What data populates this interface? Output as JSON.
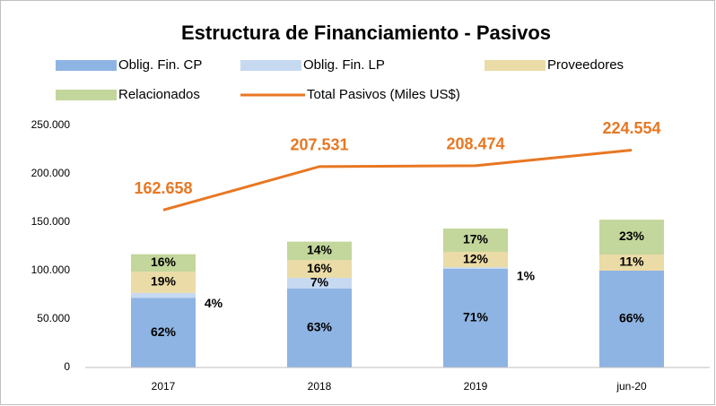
{
  "chart_data": {
    "type": "stacked_bar_line",
    "title": "Estructura de Financiamiento - Pasivos",
    "categories": [
      "2017",
      "2018",
      "2019",
      "jun-20"
    ],
    "series": [
      {
        "name": "Oblig. Fin. CP",
        "color": "#8eb4e3",
        "values": [
          72000,
          81500,
          102000,
          100000
        ],
        "labels": [
          "62%",
          "63%",
          "71%",
          "66%"
        ]
      },
      {
        "name": "Oblig. Fin. LP",
        "color": "#c6d9f1",
        "values": [
          5000,
          11000,
          1500,
          0
        ],
        "labels": [
          "4%",
          "7%",
          "1%",
          null
        ]
      },
      {
        "name": "Proveedores",
        "color": "#ebdba6",
        "values": [
          22000,
          18500,
          16000,
          16700
        ],
        "labels": [
          "19%",
          "16%",
          "12%",
          "11%"
        ]
      },
      {
        "name": "Relacionados",
        "color": "#c3d69b",
        "values": [
          18000,
          19000,
          24000,
          36000
        ],
        "labels": [
          "16%",
          "14%",
          "17%",
          "23%"
        ]
      }
    ],
    "line": {
      "name": "Total Pasivos (Miles US$)",
      "color": "#e87722",
      "values": [
        162658,
        207531,
        208474,
        224554
      ],
      "value_labels": [
        "162.658",
        "207.531",
        "208.474",
        "224.554"
      ]
    },
    "ylim": [
      0,
      250000
    ],
    "yticks": [
      0,
      {
        "value": 50000,
        "label": "50.000"
      },
      {
        "value": 100000,
        "label": "100.000"
      },
      {
        "value": 150000,
        "label": "150.000"
      },
      {
        "value": 200000,
        "label": "200.000"
      },
      {
        "value": 250000,
        "label": "250.000"
      }
    ],
    "grid": false
  }
}
